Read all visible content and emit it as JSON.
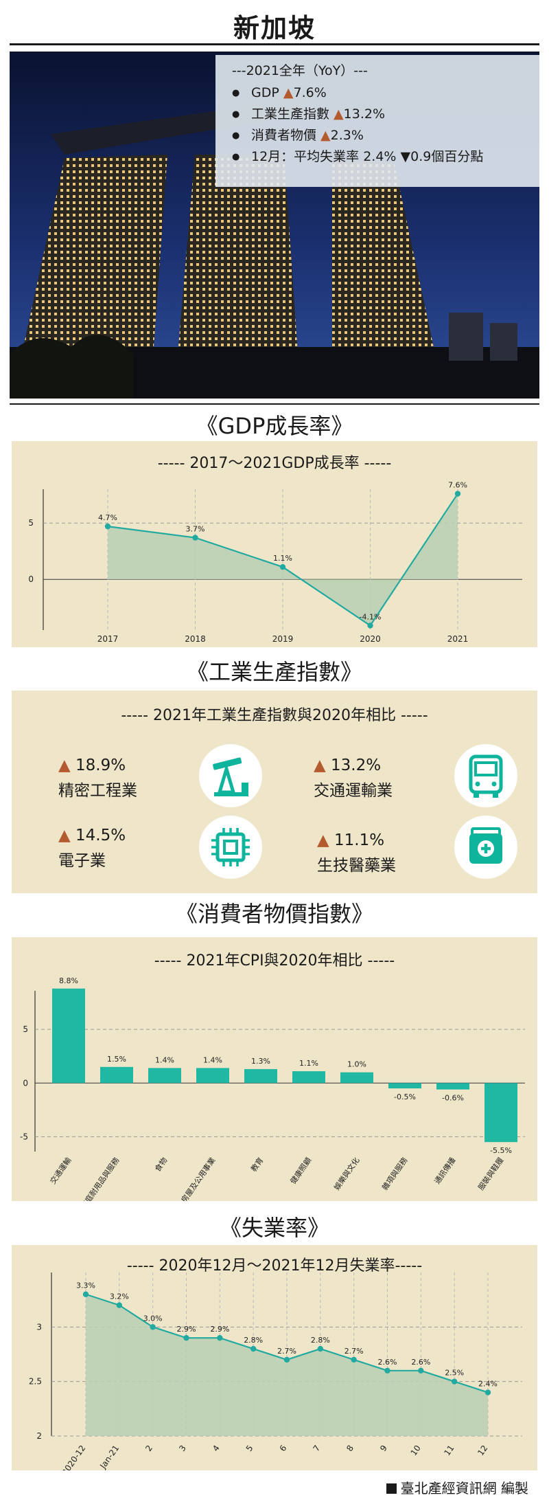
{
  "page_title": "新加坡",
  "hero": {
    "stats_head": "---2021全年（YoY）---",
    "items": [
      {
        "pre": "GDP ",
        "mark": "▲",
        "dir": "up",
        "post": "7.6%"
      },
      {
        "pre": "工業生產指數 ",
        "mark": "▲",
        "dir": "up",
        "post": "13.2%"
      },
      {
        "pre": "消費者物價 ",
        "mark": "▲",
        "dir": "up",
        "post": "2.3%"
      },
      {
        "pre": "12月：平均失業率 2.4% ",
        "mark": "▼",
        "dir": "down",
        "post": "0.9個百分點"
      }
    ]
  },
  "colors": {
    "panel_bg": "#efe6c9",
    "teal": "#20b8a3",
    "line": "#22aaa0",
    "area": "#b9cfb4",
    "up_triangle": "#b35a2e",
    "icon_teal": "#0fb49c",
    "sky": "#0b1433"
  },
  "sections": {
    "gdp": "《GDP成長率》",
    "ipi": "《工業生產指數》",
    "cpi": "《消費者物價指數》",
    "unemp": "《失業率》"
  },
  "industrial": {
    "subtitle": "----- 2021年工業生產指數與2020年相比 -----",
    "items": [
      {
        "mark": "▲",
        "value": "18.9%",
        "label": "精密工程業",
        "icon": "oil-pump-icon"
      },
      {
        "mark": "▲",
        "value": "13.2%",
        "label": "交通運輸業",
        "icon": "bus-icon"
      },
      {
        "mark": "▲",
        "value": "14.5%",
        "label": "電子業",
        "icon": "chip-icon"
      },
      {
        "mark": "▲",
        "value": "11.1%",
        "label": "生技醫藥業",
        "icon": "medicine-box-icon"
      }
    ]
  },
  "chart_data": [
    {
      "type": "area",
      "title": "----- 2017～2021GDP成長率 -----",
      "x": [
        "2017",
        "2018",
        "2019",
        "2020",
        "2021"
      ],
      "values": [
        4.7,
        3.7,
        1.1,
        -4.1,
        7.6
      ],
      "labels": [
        "4.7%",
        "3.7%",
        "1.1%",
        "-4.1%",
        "7.6%"
      ],
      "yticks": [
        "5",
        "0"
      ],
      "ylim": [
        -4.5,
        8
      ],
      "grid": true
    },
    {
      "type": "bar",
      "title": "----- 2021年CPI與2020年相比 -----",
      "categories": [
        "交通運輸",
        "家庭耐用品與服務",
        "食物",
        "房屋及公用事業",
        "教育",
        "健康照顧",
        "娛樂與文化",
        "雜項與服務",
        "通訊傳播",
        "服裝與鞋履"
      ],
      "values": [
        8.8,
        1.5,
        1.4,
        1.4,
        1.3,
        1.1,
        1.0,
        -0.5,
        -0.6,
        -5.5
      ],
      "labels": [
        "8.8%",
        "1.5%",
        "1.4%",
        "1.4%",
        "1.3%",
        "1.1%",
        "1.0%",
        "-0.5%",
        "-0.6%",
        "-5.5%"
      ],
      "yticks": [
        "5",
        "0",
        "-5"
      ],
      "ylim": [
        -6,
        10
      ],
      "grid": true
    },
    {
      "type": "area",
      "title": "----- 2020年12月～2021年12月失業率-----",
      "x": [
        "2020-12",
        "Jan-21",
        "2",
        "3",
        "4",
        "5",
        "6",
        "7",
        "8",
        "9",
        "10",
        "11",
        "12"
      ],
      "values": [
        3.3,
        3.2,
        3.0,
        2.9,
        2.9,
        2.8,
        2.7,
        2.8,
        2.7,
        2.6,
        2.6,
        2.5,
        2.4
      ],
      "labels": [
        "3.3%",
        "3.2%",
        "3.0%",
        "2.9%",
        "2.9%",
        "2.8%",
        "2.7%",
        "2.8%",
        "2.7%",
        "2.6%",
        "2.6%",
        "2.5%",
        "2.4%"
      ],
      "yticks": [
        "3",
        "2.5",
        "2"
      ],
      "ylim": [
        2,
        3.5
      ],
      "grid": true
    }
  ],
  "credit": "臺北產經資訊網 編製"
}
